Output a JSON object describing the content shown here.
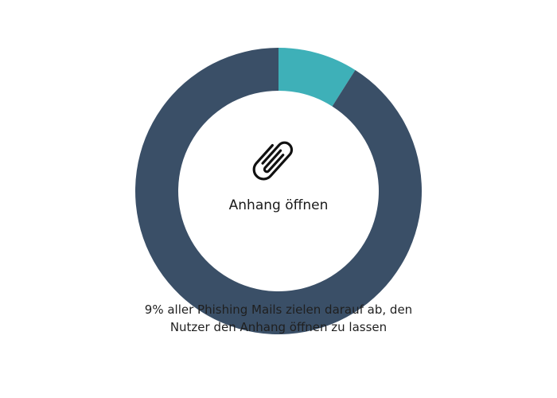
{
  "chart_data": {
    "type": "pie",
    "style": "donut",
    "slices": [
      {
        "label": "Anhang öffnen",
        "value": 9,
        "color": "#3eb0b8"
      },
      {
        "label": "",
        "value": 91,
        "color": "#3a4f67"
      }
    ]
  },
  "center": {
    "icon": "paperclip-icon",
    "label": "Anhang öffnen"
  },
  "caption": {
    "line1": "9% aller Phishing Mails zielen darauf ab, den",
    "line2": "Nutzer den Anhang öffnen zu lassen"
  }
}
